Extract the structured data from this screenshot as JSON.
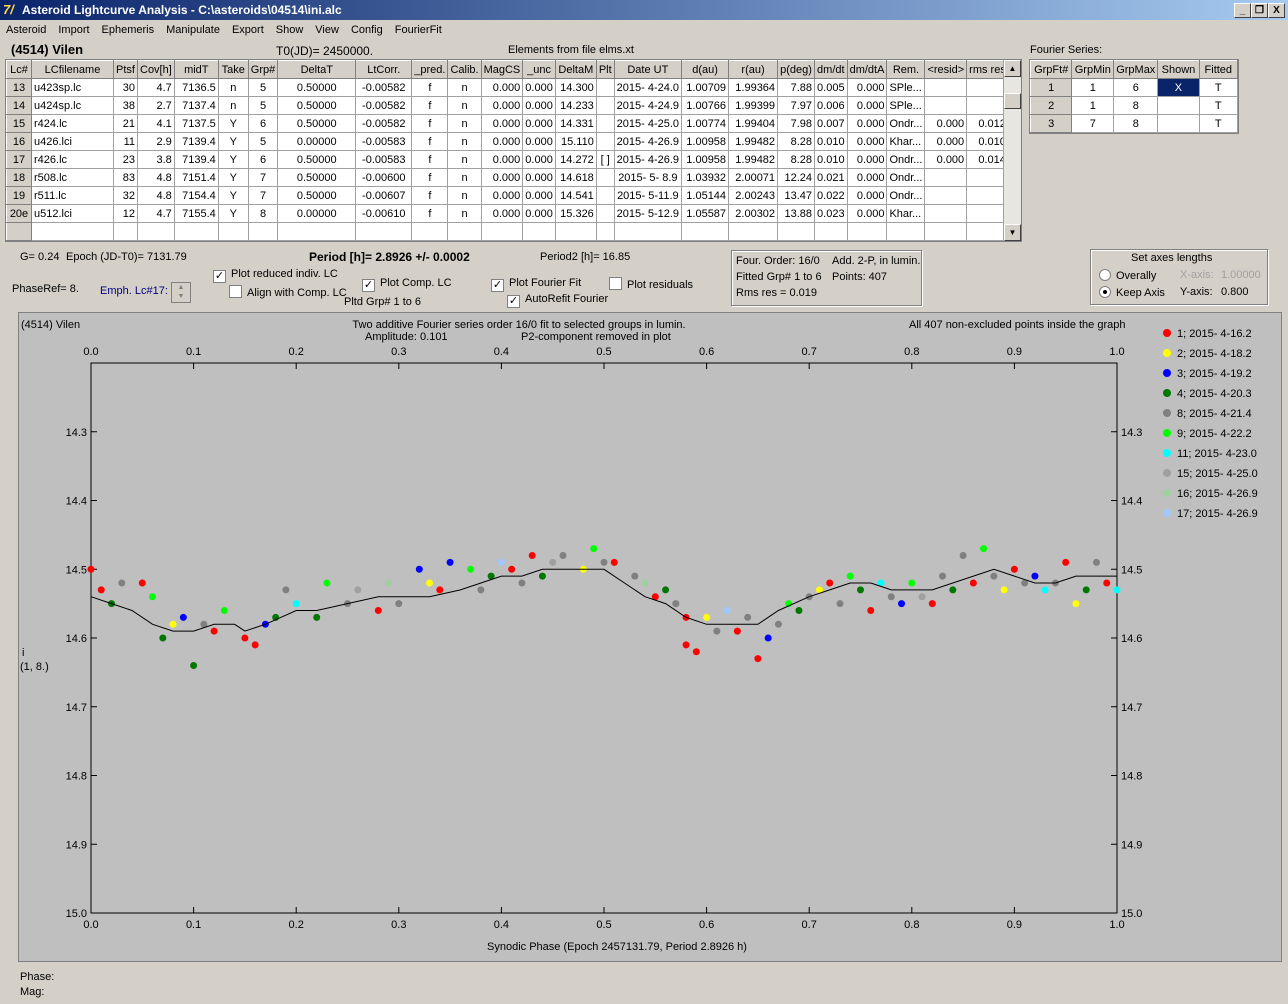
{
  "window": {
    "title": "Asteroid Lightcurve Analysis - C:\\asteroids\\04514\\ini.alc",
    "min_label": "_",
    "restore_label": "❐",
    "close_label": "X"
  },
  "menu": [
    "Asteroid",
    "Import",
    "Ephemeris",
    "Manipulate",
    "Export",
    "Show",
    "View",
    "Config",
    "FourierFit"
  ],
  "header": {
    "asteroid": "(4514) Vilen",
    "t0": "T0(JD)= 2450000.",
    "elements": "Elements from file elms.xt",
    "fourier_series": "Fourier Series:"
  },
  "lc_table": {
    "columns": [
      "Lc#",
      "LCfilename",
      "Ptsf",
      "Cov[h]",
      "midT",
      "Take",
      "Grp#",
      "DeltaT",
      "LtCorr.",
      "_pred.",
      "Calib.",
      "MagCS",
      "_unc",
      "DeltaM",
      "Plt",
      "Date UT",
      "d(au)",
      "r(au)",
      "p(deg)",
      "dm/dt",
      "dm/dtA",
      "Rem.",
      "<resid>",
      "rms res"
    ],
    "rows": [
      [
        "13",
        "u423sp.lc",
        "30",
        "4.7",
        "7136.5",
        "n",
        "5",
        "0.50000",
        "-0.00582",
        "f",
        "n",
        "0.000",
        "0.000",
        "14.300",
        "",
        "2015- 4-24.0",
        "1.00709",
        "1.99364",
        "7.88",
        "0.005",
        "0.000",
        "SPle...",
        "",
        ""
      ],
      [
        "14",
        "u424sp.lc",
        "38",
        "2.7",
        "7137.4",
        "n",
        "5",
        "0.50000",
        "-0.00582",
        "f",
        "n",
        "0.000",
        "0.000",
        "14.233",
        "",
        "2015- 4-24.9",
        "1.00766",
        "1.99399",
        "7.97",
        "0.006",
        "0.000",
        "SPle...",
        "",
        ""
      ],
      [
        "15",
        "r424.lc",
        "21",
        "4.1",
        "7137.5",
        "Y",
        "6",
        "0.50000",
        "-0.00582",
        "f",
        "n",
        "0.000",
        "0.000",
        "14.331",
        "",
        "2015- 4-25.0",
        "1.00774",
        "1.99404",
        "7.98",
        "0.007",
        "0.000",
        "Ondr...",
        "0.000",
        "0.012"
      ],
      [
        "16",
        "u426.lci",
        "11",
        "2.9",
        "7139.4",
        "Y",
        "5",
        "0.00000",
        "-0.00583",
        "f",
        "n",
        "0.000",
        "0.000",
        "15.110",
        "",
        "2015- 4-26.9",
        "1.00958",
        "1.99482",
        "8.28",
        "0.010",
        "0.000",
        "Khar...",
        "0.000",
        "0.010"
      ],
      [
        "17",
        "r426.lc",
        "23",
        "3.8",
        "7139.4",
        "Y",
        "6",
        "0.50000",
        "-0.00583",
        "f",
        "n",
        "0.000",
        "0.000",
        "14.272",
        "[ ]",
        "2015- 4-26.9",
        "1.00958",
        "1.99482",
        "8.28",
        "0.010",
        "0.000",
        "Ondr...",
        "0.000",
        "0.014"
      ],
      [
        "18",
        "r508.lc",
        "83",
        "4.8",
        "7151.4",
        "Y",
        "7",
        "0.50000",
        "-0.00600",
        "f",
        "n",
        "0.000",
        "0.000",
        "14.618",
        "",
        "2015- 5- 8.9",
        "1.03932",
        "2.00071",
        "12.24",
        "0.021",
        "0.000",
        "Ondr...",
        "",
        ""
      ],
      [
        "19",
        "r511.lc",
        "32",
        "4.8",
        "7154.4",
        "Y",
        "7",
        "0.50000",
        "-0.00607",
        "f",
        "n",
        "0.000",
        "0.000",
        "14.541",
        "",
        "2015- 5-11.9",
        "1.05144",
        "2.00243",
        "13.47",
        "0.022",
        "0.000",
        "Ondr...",
        "",
        ""
      ],
      [
        "20e",
        "u512.lci",
        "12",
        "4.7",
        "7155.4",
        "Y",
        "8",
        "0.00000",
        "-0.00610",
        "f",
        "n",
        "0.000",
        "0.000",
        "15.326",
        "",
        "2015- 5-12.9",
        "1.05587",
        "2.00302",
        "13.88",
        "0.023",
        "0.000",
        "Khar...",
        "",
        ""
      ]
    ]
  },
  "fourier_table": {
    "columns": [
      "GrpFt#",
      "GrpMin",
      "GrpMax",
      "Shown",
      "Fitted"
    ],
    "rows": [
      [
        "1",
        "1",
        "6",
        "X",
        "T"
      ],
      [
        "2",
        "1",
        "8",
        "",
        "T"
      ],
      [
        "3",
        "7",
        "8",
        "",
        "T"
      ]
    ]
  },
  "info": {
    "g": "G= 0.24",
    "epoch": "Epoch (JD-T0)= 7131.79",
    "period": "Period [h]= 2.8926 +/- 0.0002",
    "period2": "Period2 [h]= 16.85",
    "phase_ref": "PhaseRef= 8.",
    "emph": "Emph. Lc#17:",
    "pltd_grp": "Pltd Grp#  1   to   6",
    "four_order": "Four. Order: 16/0",
    "add": "Add. 2-P, in lumin.",
    "fitted_grp": "Fitted Grp# 1 to 6",
    "points": "Points: 407",
    "rms": "Rms res     = 0.019"
  },
  "checks": {
    "plot_reduced": {
      "label": "Plot reduced indiv. LC",
      "checked": "✓"
    },
    "align_comp": {
      "label": "Align with Comp. LC",
      "checked": ""
    },
    "plot_comp": {
      "label": "Plot Comp. LC",
      "checked": "✓"
    },
    "plot_fourier": {
      "label": "Plot Fourier Fit",
      "checked": "✓"
    },
    "plot_residuals": {
      "label": "Plot residuals",
      "checked": ""
    },
    "autorefit": {
      "label": "AutoRefit Fourier",
      "checked": "✓"
    }
  },
  "axes_box": {
    "title": "Set axes lengths",
    "overally": "Overally",
    "keep_axis": "Keep Axis",
    "x_label": "X-axis:",
    "x_value": "1.00000",
    "y_label": "Y-axis:",
    "y_value": "0.800"
  },
  "plot": {
    "name": "(4514) Vilen",
    "subtitle1": "Two additive Fourier series order 16/0 fit to selected groups in lumin.",
    "subtitle2": "Amplitude: 0.101",
    "subtitle3": "P2-component removed in plot",
    "note": "All 407 non-excluded points inside the graph",
    "xlabel": "Synodic Phase (Epoch 2457131.79, Period 2.8926 h)",
    "ylabel1": "i",
    "ylabel2": "(1, 8.)"
  },
  "status": {
    "phase": "Phase:",
    "mag": "Mag:"
  },
  "chart_data": {
    "type": "scatter",
    "xlim": [
      0.0,
      1.0
    ],
    "ylim": [
      15.0,
      14.2
    ],
    "x_ticks": [
      "0.0",
      "0.1",
      "0.2",
      "0.3",
      "0.4",
      "0.5",
      "0.6",
      "0.7",
      "0.8",
      "0.9",
      "1.0"
    ],
    "y_ticks": [
      "14.3",
      "14.4",
      "14.5",
      "14.6",
      "14.7",
      "14.8",
      "14.9",
      "15.0"
    ],
    "legend_position": "right",
    "series": [
      {
        "name": "1; 2015- 4-16.2",
        "color": "#ff0000"
      },
      {
        "name": "2; 2015- 4-18.2",
        "color": "#ffff00"
      },
      {
        "name": "3; 2015- 4-19.2",
        "color": "#0000ff"
      },
      {
        "name": "4; 2015- 4-20.3",
        "color": "#007800"
      },
      {
        "name": "8; 2015- 4-21.4",
        "color": "#808080"
      },
      {
        "name": "9; 2015- 4-22.2",
        "color": "#00ff00"
      },
      {
        "name": "11; 2015- 4-23.0",
        "color": "#00ffff"
      },
      {
        "name": "15; 2015- 4-25.0",
        "color": "#a0a0a0"
      },
      {
        "name": "16; 2015- 4-26.9",
        "color": "#a0d0a0"
      },
      {
        "name": "17; 2015- 4-26.9",
        "color": "#a0c8ff"
      }
    ],
    "fit_curve": {
      "x": [
        0.0,
        0.02,
        0.04,
        0.06,
        0.08,
        0.1,
        0.12,
        0.14,
        0.15,
        0.17,
        0.2,
        0.22,
        0.25,
        0.28,
        0.3,
        0.33,
        0.36,
        0.38,
        0.4,
        0.42,
        0.44,
        0.46,
        0.48,
        0.5,
        0.52,
        0.54,
        0.56,
        0.58,
        0.6,
        0.62,
        0.64,
        0.65,
        0.67,
        0.7,
        0.72,
        0.74,
        0.76,
        0.78,
        0.8,
        0.82,
        0.84,
        0.86,
        0.88,
        0.9,
        0.92,
        0.94,
        0.96,
        0.98,
        1.0
      ],
      "y": [
        14.54,
        14.55,
        14.56,
        14.58,
        14.59,
        14.59,
        14.58,
        14.58,
        14.59,
        14.58,
        14.56,
        14.56,
        14.55,
        14.54,
        14.54,
        14.54,
        14.53,
        14.52,
        14.51,
        14.51,
        14.5,
        14.5,
        14.5,
        14.5,
        14.52,
        14.54,
        14.55,
        14.57,
        14.58,
        14.58,
        14.58,
        14.58,
        14.56,
        14.54,
        14.53,
        14.52,
        14.52,
        14.53,
        14.53,
        14.53,
        14.52,
        14.51,
        14.5,
        14.51,
        14.52,
        14.52,
        14.51,
        14.51,
        14.51
      ]
    },
    "points": [
      [
        0.0,
        14.5,
        0
      ],
      [
        0.01,
        14.53,
        0
      ],
      [
        0.02,
        14.55,
        3
      ],
      [
        0.03,
        14.52,
        4
      ],
      [
        0.05,
        14.52,
        0
      ],
      [
        0.06,
        14.54,
        5
      ],
      [
        0.07,
        14.6,
        3
      ],
      [
        0.08,
        14.58,
        1
      ],
      [
        0.09,
        14.57,
        2
      ],
      [
        0.1,
        14.64,
        3
      ],
      [
        0.11,
        14.58,
        4
      ],
      [
        0.12,
        14.59,
        0
      ],
      [
        0.13,
        14.56,
        5
      ],
      [
        0.15,
        14.6,
        0
      ],
      [
        0.16,
        14.61,
        0
      ],
      [
        0.17,
        14.58,
        2
      ],
      [
        0.18,
        14.57,
        3
      ],
      [
        0.19,
        14.53,
        4
      ],
      [
        0.2,
        14.55,
        6
      ],
      [
        0.22,
        14.57,
        3
      ],
      [
        0.23,
        14.52,
        5
      ],
      [
        0.25,
        14.55,
        4
      ],
      [
        0.26,
        14.53,
        7
      ],
      [
        0.28,
        14.56,
        0
      ],
      [
        0.29,
        14.52,
        8
      ],
      [
        0.3,
        14.55,
        4
      ],
      [
        0.32,
        14.5,
        2
      ],
      [
        0.33,
        14.52,
        1
      ],
      [
        0.34,
        14.53,
        0
      ],
      [
        0.35,
        14.49,
        2
      ],
      [
        0.37,
        14.5,
        5
      ],
      [
        0.38,
        14.53,
        4
      ],
      [
        0.39,
        14.51,
        3
      ],
      [
        0.4,
        14.49,
        9
      ],
      [
        0.41,
        14.5,
        0
      ],
      [
        0.42,
        14.52,
        4
      ],
      [
        0.43,
        14.48,
        0
      ],
      [
        0.44,
        14.51,
        3
      ],
      [
        0.45,
        14.49,
        7
      ],
      [
        0.46,
        14.48,
        4
      ],
      [
        0.48,
        14.5,
        1
      ],
      [
        0.49,
        14.47,
        5
      ],
      [
        0.5,
        14.49,
        4
      ],
      [
        0.51,
        14.49,
        0
      ],
      [
        0.53,
        14.51,
        4
      ],
      [
        0.54,
        14.52,
        8
      ],
      [
        0.55,
        14.54,
        0
      ],
      [
        0.56,
        14.53,
        3
      ],
      [
        0.57,
        14.55,
        4
      ],
      [
        0.58,
        14.57,
        0
      ],
      [
        0.58,
        14.61,
        0
      ],
      [
        0.59,
        14.62,
        0
      ],
      [
        0.6,
        14.57,
        1
      ],
      [
        0.61,
        14.59,
        4
      ],
      [
        0.62,
        14.56,
        9
      ],
      [
        0.63,
        14.59,
        0
      ],
      [
        0.64,
        14.57,
        4
      ],
      [
        0.65,
        14.63,
        0
      ],
      [
        0.66,
        14.6,
        2
      ],
      [
        0.67,
        14.58,
        4
      ],
      [
        0.68,
        14.55,
        5
      ],
      [
        0.69,
        14.56,
        3
      ],
      [
        0.7,
        14.54,
        4
      ],
      [
        0.71,
        14.53,
        1
      ],
      [
        0.72,
        14.52,
        0
      ],
      [
        0.73,
        14.55,
        4
      ],
      [
        0.74,
        14.51,
        5
      ],
      [
        0.75,
        14.53,
        3
      ],
      [
        0.76,
        14.56,
        0
      ],
      [
        0.77,
        14.52,
        6
      ],
      [
        0.78,
        14.54,
        4
      ],
      [
        0.79,
        14.55,
        2
      ],
      [
        0.8,
        14.52,
        5
      ],
      [
        0.81,
        14.54,
        7
      ],
      [
        0.82,
        14.55,
        0
      ],
      [
        0.83,
        14.51,
        4
      ],
      [
        0.84,
        14.53,
        3
      ],
      [
        0.85,
        14.48,
        4
      ],
      [
        0.86,
        14.52,
        0
      ],
      [
        0.87,
        14.47,
        5
      ],
      [
        0.88,
        14.51,
        4
      ],
      [
        0.89,
        14.53,
        1
      ],
      [
        0.9,
        14.5,
        0
      ],
      [
        0.91,
        14.52,
        4
      ],
      [
        0.92,
        14.51,
        2
      ],
      [
        0.93,
        14.53,
        6
      ],
      [
        0.94,
        14.52,
        4
      ],
      [
        0.95,
        14.49,
        0
      ],
      [
        0.96,
        14.55,
        1
      ],
      [
        0.97,
        14.53,
        3
      ],
      [
        0.98,
        14.49,
        4
      ],
      [
        0.99,
        14.52,
        0
      ],
      [
        1.0,
        14.53,
        6
      ]
    ]
  }
}
